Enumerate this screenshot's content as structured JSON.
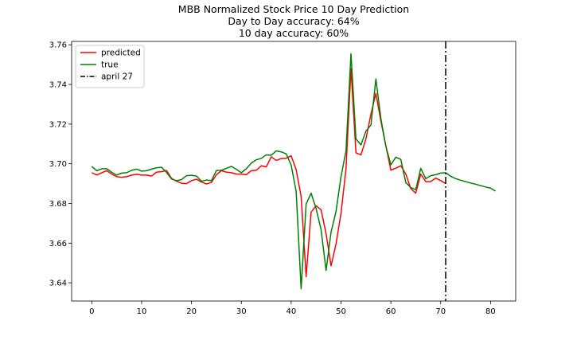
{
  "chart_data": {
    "type": "line",
    "title": [
      "MBB Normalized Stock Price 10 Day Prediction",
      "Day to Day accuracy: 64%",
      "10 day accuracy: 60%"
    ],
    "xlabel": "",
    "ylabel": "",
    "xlim": [
      -4.05,
      85.05
    ],
    "ylim": [
      3.6308,
      3.7617
    ],
    "xticks": [
      0,
      10,
      20,
      30,
      40,
      50,
      60,
      70,
      80
    ],
    "yticks": [
      3.64,
      3.66,
      3.68,
      3.7,
      3.72,
      3.74,
      3.76
    ],
    "ytick_labels": [
      "3.64",
      "3.66",
      "3.68",
      "3.70",
      "3.72",
      "3.74",
      "3.76"
    ],
    "grid": false,
    "legend_position": "top-left",
    "series": [
      {
        "name": "predicted",
        "color": "#ff0000",
        "style": "solid",
        "x": [
          0,
          1,
          2,
          3,
          4,
          5,
          6,
          7,
          8,
          9,
          10,
          11,
          12,
          13,
          14,
          15,
          16,
          17,
          18,
          19,
          20,
          21,
          22,
          23,
          24,
          25,
          26,
          27,
          28,
          29,
          30,
          31,
          32,
          33,
          34,
          35,
          36,
          37,
          38,
          39,
          40,
          41,
          42,
          43,
          44,
          45,
          46,
          47,
          48,
          49,
          50,
          51,
          52,
          53,
          54,
          55,
          56,
          57,
          58,
          59,
          60,
          61,
          62,
          63,
          64,
          65,
          66,
          67,
          68,
          69,
          70,
          71
        ],
        "y": [
          3.6955,
          3.6943,
          3.6955,
          3.6965,
          3.6948,
          3.6935,
          3.6932,
          3.6935,
          3.6943,
          3.6947,
          3.6943,
          3.6943,
          3.6938,
          3.6958,
          3.696,
          3.6966,
          3.6926,
          3.6912,
          3.6902,
          3.69,
          3.6915,
          3.6922,
          3.6908,
          3.6898,
          3.6906,
          3.6945,
          3.6965,
          3.6958,
          3.6955,
          3.6948,
          3.6948,
          3.6945,
          3.6965,
          3.6967,
          3.699,
          3.6984,
          3.7035,
          3.7017,
          3.7026,
          3.7028,
          3.704,
          3.697,
          3.6835,
          3.643,
          3.6756,
          3.6788,
          3.6768,
          3.6648,
          3.6485,
          3.6595,
          3.675,
          3.6975,
          3.748,
          3.7055,
          3.7045,
          3.7125,
          3.725,
          3.7355,
          3.7215,
          3.709,
          3.6968,
          3.6978,
          3.699,
          3.6948,
          3.6875,
          3.6852,
          3.6948,
          3.691,
          3.691,
          3.6928,
          3.6915,
          3.69
        ]
      },
      {
        "name": "true",
        "color": "#008000",
        "style": "solid",
        "x": [
          0,
          1,
          2,
          3,
          4,
          5,
          6,
          7,
          8,
          9,
          10,
          11,
          12,
          13,
          14,
          15,
          16,
          17,
          18,
          19,
          20,
          21,
          22,
          23,
          24,
          25,
          26,
          27,
          28,
          29,
          30,
          31,
          32,
          33,
          34,
          35,
          36,
          37,
          38,
          39,
          40,
          41,
          42,
          43,
          44,
          45,
          46,
          47,
          48,
          49,
          50,
          51,
          52,
          53,
          54,
          55,
          56,
          57,
          58,
          59,
          60,
          61,
          62,
          63,
          64,
          65,
          66,
          67,
          68,
          69,
          70,
          71,
          72,
          73,
          74,
          75,
          76,
          77,
          78,
          79,
          80,
          81
        ],
        "y": [
          3.6987,
          3.6965,
          3.6975,
          3.6975,
          3.6957,
          3.6943,
          3.6953,
          3.6955,
          3.6967,
          3.6973,
          3.6963,
          3.6965,
          3.6973,
          3.698,
          3.6982,
          3.6956,
          3.6923,
          3.6915,
          3.692,
          3.694,
          3.6942,
          3.6938,
          3.6912,
          3.6918,
          3.6915,
          3.6966,
          3.6967,
          3.6977,
          3.6987,
          3.6972,
          3.6955,
          3.6975,
          3.7003,
          3.702,
          3.7027,
          3.7045,
          3.7043,
          3.7065,
          3.706,
          3.705,
          3.6993,
          3.686,
          3.637,
          3.6797,
          3.6852,
          3.6774,
          3.6668,
          3.6462,
          3.6655,
          3.676,
          3.6935,
          3.7065,
          3.7555,
          3.7125,
          3.7095,
          3.7165,
          3.7195,
          3.7428,
          3.7228,
          3.7088,
          3.6995,
          3.7033,
          3.7022,
          3.6905,
          3.688,
          3.687,
          3.6977,
          3.6925,
          3.694,
          3.6945,
          3.6953,
          3.6955,
          3.6937,
          3.6925,
          3.6917,
          3.691,
          3.6903,
          3.6897,
          3.689,
          3.6883,
          3.6877,
          3.6862
        ]
      }
    ],
    "vlines": [
      {
        "name": "april 27",
        "x": 71,
        "color": "#000000",
        "style": "dashdot"
      }
    ]
  }
}
